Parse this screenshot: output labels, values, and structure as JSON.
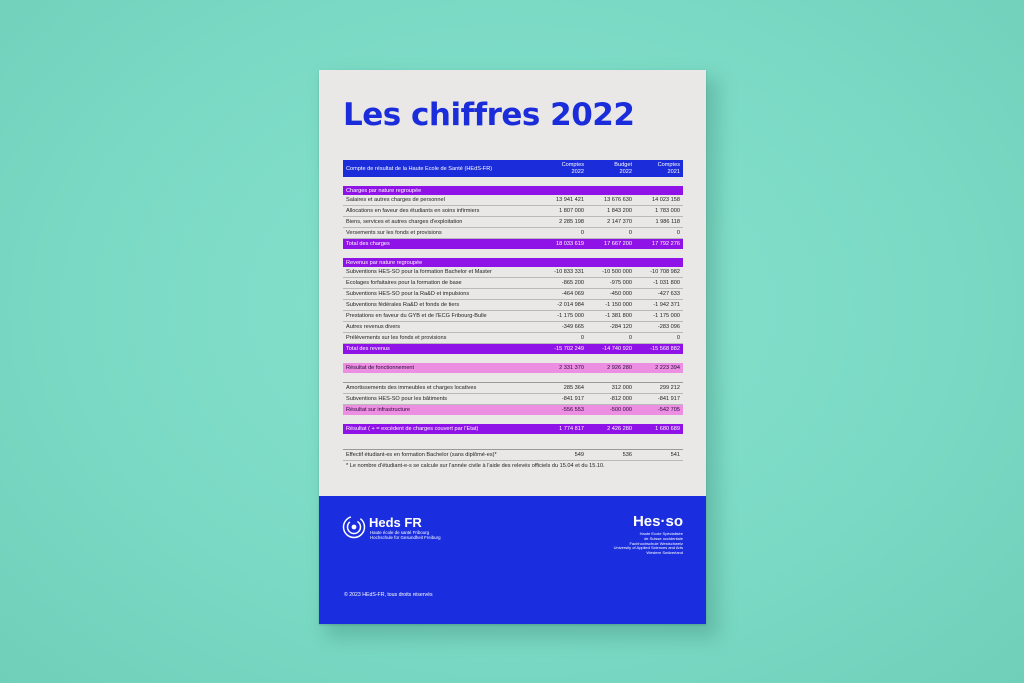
{
  "document": {
    "title": "Les chiffres 2022",
    "table": {
      "header": {
        "label": "Compte de résultat de la Haute École de Santé (HEdS-FR)",
        "cols": [
          {
            "l1": "Comptes",
            "l2": "2022"
          },
          {
            "l1": "Budget",
            "l2": "2022"
          },
          {
            "l1": "Comptes",
            "l2": "2021"
          }
        ]
      },
      "charges": {
        "section": "Charges par nature regroupée",
        "rows": [
          {
            "label": "Salaires et autres charges de personnel",
            "v": [
              "13 941 421",
              "13 676 630",
              "14 023 158"
            ]
          },
          {
            "label": "Allocations en faveur des étudiants en soins infirmiers",
            "v": [
              "1 807 000",
              "1 843 200",
              "1 783 000"
            ]
          },
          {
            "label": "Biens, services et autres charges d'exploitation",
            "v": [
              "2 285 198",
              "2 147 370",
              "1 986 118"
            ]
          },
          {
            "label": "Versements sur les fonds et provisions",
            "v": [
              "0",
              "0",
              "0"
            ]
          }
        ],
        "total": {
          "label": "Total des charges",
          "v": [
            "18 033 619",
            "17 667 200",
            "17 792 276"
          ]
        }
      },
      "revenus": {
        "section": "Revenus par nature regroupée",
        "rows": [
          {
            "label": "Subventions HES-SO pour la formation Bachelor et Master",
            "v": [
              "-10 833 331",
              "-10 500 000",
              "-10 708 982"
            ]
          },
          {
            "label": "Ecolages forfaitaires pour la formation de base",
            "v": [
              "-865 200",
              "-975 000",
              "-1 031 800"
            ]
          },
          {
            "label": "Subventions HES-SO pour la Ra&D et impulsions",
            "v": [
              "-464 069",
              "-450 000",
              "-427 633"
            ]
          },
          {
            "label": "Subventions fédérales Ra&D et fonds de tiers",
            "v": [
              "-2 014 984",
              "-1 150 000",
              "-1 942 371"
            ]
          },
          {
            "label": "Prestations en faveur du GYB et de l'ECG Fribourg-Bulle",
            "v": [
              "-1 175 000",
              "-1 381 800",
              "-1 175 000"
            ]
          },
          {
            "label": "Autres revenus divers",
            "v": [
              "-349 665",
              "-284 120",
              "-283 096"
            ]
          },
          {
            "label": "Prélèvements sur les fonds et provisions",
            "v": [
              "0",
              "0",
              "0"
            ]
          }
        ],
        "total": {
          "label": "Total des revenus",
          "v": [
            "-15 702 249",
            "-14 740 920",
            "-15 568 882"
          ]
        }
      },
      "fonctionnement": {
        "label": "Résultat de fonctionnement",
        "v": [
          "2 331 370",
          "2 926 280",
          "2 223 394"
        ]
      },
      "infrastructure": {
        "rows": [
          {
            "label": "Amortissements des immeubles et charges locatives",
            "v": [
              "285 364",
              "312 000",
              "299 212"
            ]
          },
          {
            "label": "Subventions HES-SO pour les bâtiments",
            "v": [
              "-841 917",
              "-812 000",
              "-841 917"
            ]
          }
        ],
        "result": {
          "label": "Résultat sur infrastructure",
          "v": [
            "-556 553",
            "-500 000",
            "-542 705"
          ]
        }
      },
      "final": {
        "label": "Résultat ( + = excédent de charges couvert par l'Etat)",
        "v": [
          "1 774 817",
          "2 426 280",
          "1 680 689"
        ]
      },
      "effectif": {
        "label": "Effectif étudiant-es en formation Bachelor (sans diplômé-es)*",
        "v": [
          "549",
          "536",
          "541"
        ]
      },
      "footnote": "* Le nombre d'étudiant-e-s se calcule sur l'année civile à l'aide des relevés officiels du 15.04 et du 15.10."
    },
    "footer": {
      "heds_name": "Heds FR",
      "heds_sub1": "Haute école de santé Fribourg",
      "heds_sub2": "Hochschule für Gesundheit Freiburg",
      "hes_name": "Hes·so",
      "hes_sub1": "Haute Ecole Spécialisée",
      "hes_sub2": "de Suisse occidentale",
      "hes_sub3": "Fachhochschule Westschweiz",
      "hes_sub4": "University of Applied Sciences and Arts",
      "hes_sub5": "Western Switzerland",
      "copyright": "© 2023 HEdS-FR, tous droits réservés"
    },
    "colors": {
      "blue": "#1b2cdb",
      "violet": "#8f12e6",
      "pink": "#ec8ee2",
      "background": "#7ad9c4"
    },
    "icons": [
      "heds-logo-icon"
    ]
  }
}
